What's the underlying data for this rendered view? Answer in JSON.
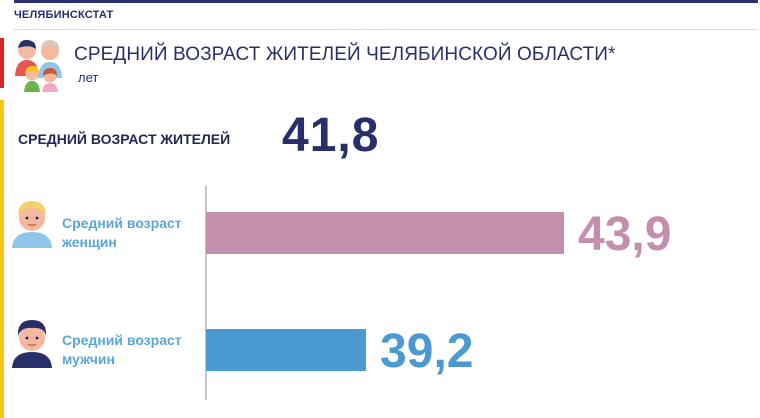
{
  "header": {
    "org_name": "ЧЕЛЯБИНСКСТАТ",
    "title": "СРЕДНИЙ ВОЗРАСТ ЖИТЕЛЕЙ ЧЕЛЯБИНСКОЙ ОБЛАСТИ*",
    "unit": "лет"
  },
  "summary": {
    "label": "СРЕДНИЙ ВОЗРАСТ ЖИТЕЛЕЙ",
    "value": "41,8"
  },
  "colors": {
    "navy": "#27306b",
    "women_bar": "#c48fad",
    "men_bar": "#4a9ad1",
    "women_text": "#c48fad",
    "men_text": "#4a9ad1",
    "accent_red": "#d9222a",
    "accent_yellow": "#f5c518",
    "category_text": "#5ba5d9"
  },
  "icons": {
    "family": "family-icon",
    "woman": "woman-avatar-icon",
    "man": "man-avatar-icon"
  },
  "chart_data": {
    "type": "bar",
    "orientation": "horizontal",
    "categories": [
      "Средний возраст женщин",
      "Средний возраст мужчин"
    ],
    "category_lines": [
      [
        "Средний возраст",
        "женщин"
      ],
      [
        "Средний возраст",
        "мужчин"
      ]
    ],
    "values": [
      43.9,
      39.2
    ],
    "value_labels": [
      "43,9",
      "39,2"
    ],
    "title": "СРЕДНИЙ ВОЗРАСТ ЖИТЕЛЕЙ ЧЕЛЯБИНСКОЙ ОБЛАСТИ*",
    "xlabel": "",
    "ylabel": "",
    "unit": "лет",
    "xlim": [
      35.4,
      45
    ],
    "grid": false,
    "legend": "none"
  }
}
